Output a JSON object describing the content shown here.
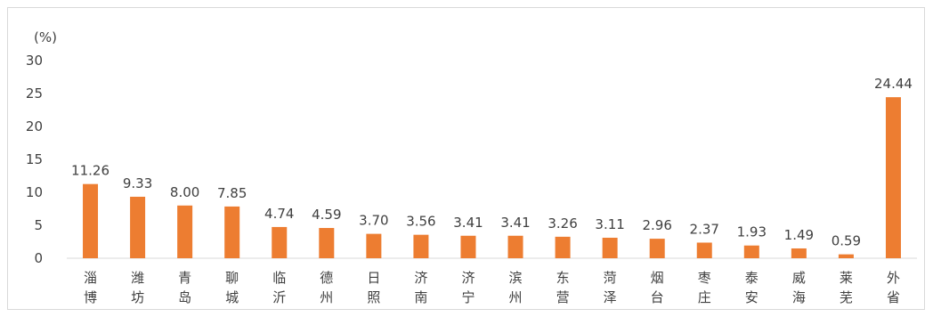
{
  "chart_data": {
    "type": "bar",
    "unit_label": "(%)",
    "ylim": [
      0,
      30
    ],
    "yticks": [
      "0",
      "5",
      "10",
      "15",
      "20",
      "25",
      "30"
    ],
    "grid": false,
    "legend": "none",
    "bar_color": "#ED7D31",
    "categories": [
      "淄博",
      "潍坊",
      "青岛",
      "聊城",
      "临沂",
      "德州",
      "日照",
      "济南",
      "济宁",
      "滨州",
      "东营",
      "菏泽",
      "烟台",
      "枣庄",
      "泰安",
      "威海",
      "莱芜",
      "外省"
    ],
    "values": [
      11.26,
      9.33,
      8.0,
      7.85,
      4.74,
      4.59,
      3.7,
      3.56,
      3.41,
      3.41,
      3.26,
      3.11,
      2.96,
      2.37,
      1.93,
      1.49,
      0.59,
      24.44
    ],
    "data_labels": [
      "11.26",
      "9.33",
      "8.00",
      "7.85",
      "4.74",
      "4.59",
      "3.70",
      "3.56",
      "3.41",
      "3.41",
      "3.26",
      "3.11",
      "2.96",
      "2.37",
      "1.93",
      "1.49",
      "0.59",
      "24.44"
    ]
  }
}
